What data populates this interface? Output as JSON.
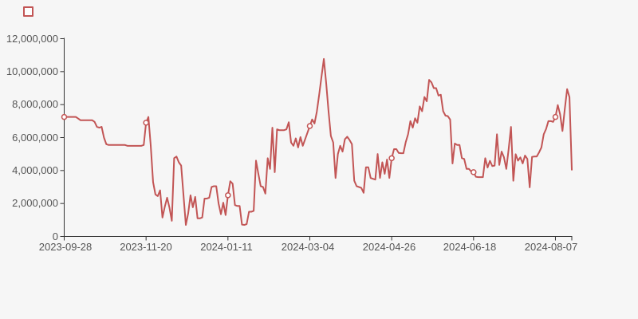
{
  "chart": {
    "background_color": "#f6f6f6",
    "axis_color": "#333333",
    "label_color": "#555555",
    "legend_swatch_color": "#c25555"
  },
  "chart_data": {
    "type": "line",
    "title": "",
    "xlabel": "",
    "ylabel": "",
    "grid": "off",
    "legend_position": "top-left",
    "series_name": "",
    "series_color": "#c25555",
    "marker_style": "hollow-circle",
    "marker_indices": [
      0,
      35,
      70,
      105,
      140,
      175,
      210
    ],
    "x_tick_labels": [
      "2023-09-28",
      "2023-11-20",
      "2024-01-11",
      "2024-03-04",
      "2024-04-26",
      "2024-06-18",
      "2024-08-07"
    ],
    "y_tick_labels": [
      "0",
      "2,000,000",
      "4,000,000",
      "6,000,000",
      "8,000,000",
      "10,000,000",
      "12,000,000"
    ],
    "ylim": [
      0,
      12000000
    ],
    "values": [
      7250000,
      7250000,
      7250000,
      7250000,
      7250000,
      7250000,
      7150000,
      7050000,
      7050000,
      7050000,
      7050000,
      7050000,
      7050000,
      6950000,
      6650000,
      6600000,
      6650000,
      6000000,
      5600000,
      5550000,
      5550000,
      5550000,
      5550000,
      5550000,
      5550000,
      5550000,
      5550000,
      5500000,
      5500000,
      5500000,
      5500000,
      5500000,
      5500000,
      5500000,
      5550000,
      6900000,
      7250000,
      5500000,
      3300000,
      2550000,
      2450000,
      2800000,
      1150000,
      1800000,
      2350000,
      1750000,
      950000,
      4750000,
      4850000,
      4500000,
      4300000,
      2500000,
      700000,
      1400000,
      2500000,
      1770000,
      2400000,
      1100000,
      1100000,
      1150000,
      2300000,
      2300000,
      2350000,
      3000000,
      3050000,
      3050000,
      2000000,
      1350000,
      2050000,
      1300000,
      2500000,
      3350000,
      3200000,
      1900000,
      1850000,
      1850000,
      720000,
      700000,
      750000,
      1500000,
      1500000,
      1550000,
      4600000,
      3800000,
      3050000,
      3000000,
      2600000,
      4750000,
      4100000,
      6600000,
      3900000,
      6500000,
      6450000,
      6450000,
      6450000,
      6500000,
      6930000,
      5700000,
      5500000,
      5950000,
      5400000,
      6030000,
      5500000,
      5900000,
      6300000,
      6700000,
      7100000,
      6850000,
      7570000,
      8600000,
      9700000,
      10770000,
      9300000,
      7600000,
      6100000,
      5700000,
      3550000,
      5000000,
      5500000,
      5150000,
      5900000,
      6050000,
      5850000,
      5600000,
      3380000,
      3050000,
      3000000,
      2950000,
      2650000,
      4200000,
      4200000,
      3550000,
      3500000,
      3450000,
      5000000,
      3550000,
      4500000,
      3800000,
      4670000,
      3550000,
      4750000,
      5300000,
      5300000,
      5070000,
      5050000,
      5050000,
      5720000,
      6200000,
      7000000,
      6600000,
      7170000,
      6900000,
      7890000,
      7600000,
      8460000,
      8200000,
      9500000,
      9350000,
      9000000,
      9000000,
      8550000,
      8600000,
      7600000,
      7330000,
      7300000,
      7090000,
      4430000,
      5640000,
      5550000,
      5550000,
      4750000,
      4700000,
      4100000,
      4100000,
      3940000,
      3900000,
      3620000,
      3600000,
      3600000,
      3600000,
      4750000,
      4180000,
      4590000,
      4270000,
      4300000,
      6200000,
      4340000,
      5150000,
      4800000,
      4100000,
      5300000,
      6650000,
      3380000,
      4990000,
      4600000,
      4800000,
      4430000,
      4910000,
      4700000,
      2980000,
      4830000,
      4850000,
      4850000,
      5100000,
      5400000,
      6200000,
      6520000,
      7000000,
      7000000,
      6950000,
      7250000,
      7970000,
      7410000,
      6400000,
      7730000,
      8940000,
      8450000,
      4050000
    ]
  }
}
